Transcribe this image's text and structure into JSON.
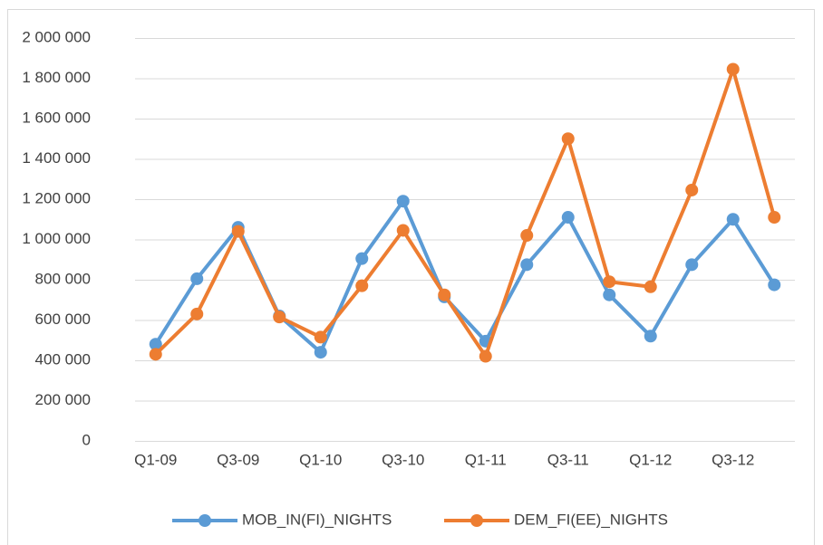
{
  "chart_data": {
    "type": "line",
    "categories": [
      "Q1-09",
      null,
      "Q3-09",
      null,
      "Q1-10",
      null,
      "Q3-10",
      null,
      "Q1-11",
      null,
      "Q3-11",
      null,
      "Q1-12",
      null,
      "Q3-12",
      null
    ],
    "series": [
      {
        "name": "MOB_IN(FI)_NIGHTS",
        "color": "#5b9bd5",
        "values": [
          480000,
          805000,
          1060000,
          620000,
          440000,
          905000,
          1190000,
          715000,
          495000,
          875000,
          1110000,
          725000,
          520000,
          875000,
          1100000,
          775000
        ]
      },
      {
        "name": "DEM_FI(EE)_NIGHTS",
        "color": "#ed7d31",
        "values": [
          430000,
          630000,
          1040000,
          615000,
          515000,
          770000,
          1045000,
          725000,
          420000,
          1020000,
          1500000,
          790000,
          765000,
          1245000,
          1845000,
          1110000
        ]
      }
    ],
    "ylim": [
      0,
      2000000
    ],
    "yticks": [
      0,
      {
        "value": 200000,
        "label": "200 000"
      },
      {
        "value": 400000,
        "label": "400 000"
      },
      {
        "value": 600000,
        "label": "600 000"
      },
      {
        "value": 800000,
        "label": "800 000"
      },
      {
        "value": 1000000,
        "label": "1 000 000"
      },
      {
        "value": 1200000,
        "label": "1 200 000"
      },
      {
        "value": 1400000,
        "label": "1 400 000"
      },
      {
        "value": 1600000,
        "label": "1 600 000"
      },
      {
        "value": 1800000,
        "label": "1 800 000"
      },
      {
        "value": 2000000,
        "label": "2 000 000"
      }
    ],
    "grid": true,
    "legend": "bottom"
  }
}
